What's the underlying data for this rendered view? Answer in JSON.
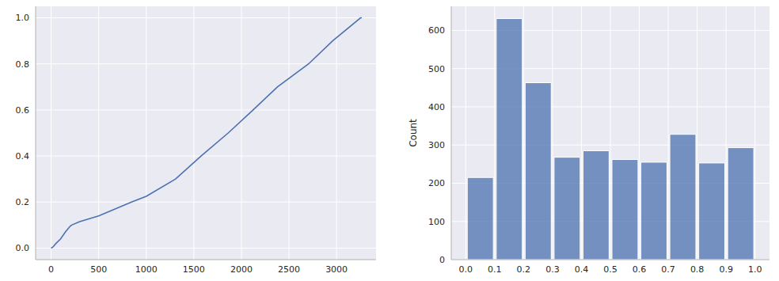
{
  "chart_data": [
    {
      "type": "line",
      "x": [
        0,
        20,
        50,
        100,
        150,
        200,
        215,
        300,
        500,
        845,
        1000,
        1308,
        1576,
        1861,
        2123,
        2378,
        2706,
        2959,
        3252,
        3265
      ],
      "values": [
        0,
        0.005,
        0.02,
        0.04,
        0.07,
        0.095,
        0.1,
        0.115,
        0.14,
        0.2,
        0.225,
        0.3,
        0.4,
        0.5,
        0.6,
        0.7,
        0.8,
        0.9,
        1.0,
        1.0
      ],
      "color": "#4c72b0",
      "xlim": [
        -163,
        3415
      ],
      "xticks": [
        0,
        500,
        1000,
        1500,
        2000,
        2500,
        3000
      ],
      "ylim": [
        -0.05,
        1.05
      ],
      "yticks": [
        {
          "value": 0,
          "label": "0.0"
        },
        {
          "value": 0.2,
          "label": "0.2"
        },
        {
          "value": 0.4,
          "label": "0.4"
        },
        {
          "value": 0.6,
          "label": "0.6"
        },
        {
          "value": 0.8,
          "label": "0.8"
        },
        {
          "value": 1,
          "label": "1.0"
        }
      ],
      "grid": true
    },
    {
      "type": "histogram",
      "y_label": "Count",
      "bins": [
        0,
        0.1,
        0.2,
        0.3,
        0.4,
        0.5,
        0.6,
        0.7,
        0.8,
        0.9,
        1.0
      ],
      "values": [
        215,
        631,
        463,
        268,
        285,
        262,
        255,
        328,
        253,
        293
      ],
      "color": "#4c72b0",
      "xlim": [
        -0.05,
        1.05
      ],
      "xticks": [
        {
          "value": 0,
          "label": "0.0"
        },
        {
          "value": 0.1,
          "label": "0.1"
        },
        {
          "value": 0.2,
          "label": "0.2"
        },
        {
          "value": 0.3,
          "label": "0.3"
        },
        {
          "value": 0.4,
          "label": "0.4"
        },
        {
          "value": 0.5,
          "label": "0.5"
        },
        {
          "value": 0.6,
          "label": "0.6"
        },
        {
          "value": 0.7,
          "label": "0.7"
        },
        {
          "value": 0.8,
          "label": "0.8"
        },
        {
          "value": 0.9,
          "label": "0.9"
        },
        {
          "value": 1,
          "label": "1.0"
        }
      ],
      "ylim": [
        0,
        663
      ],
      "yticks": [
        0,
        100,
        200,
        300,
        400,
        500,
        600
      ],
      "grid": true
    }
  ]
}
